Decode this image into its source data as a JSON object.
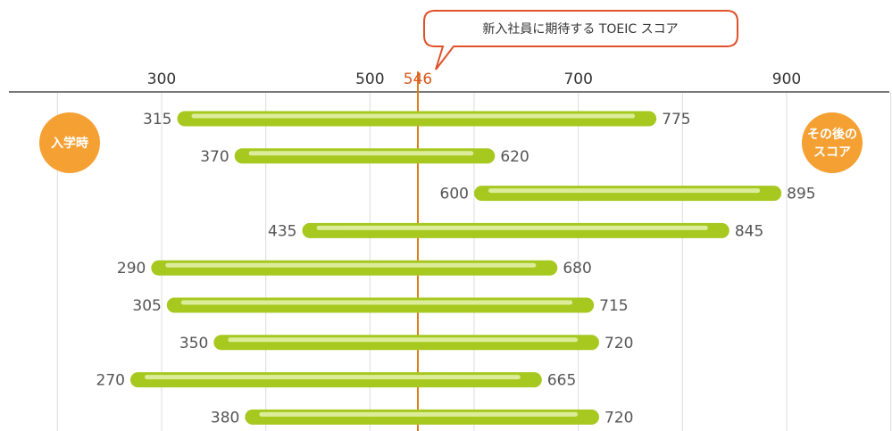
{
  "chart_data": {
    "type": "range-bar",
    "title": "新入社員に期待する TOEIC スコア",
    "xlim": [
      200,
      1000
    ],
    "x_ticks": [
      300,
      500,
      700,
      900
    ],
    "marker": {
      "value": 546,
      "label": "546"
    },
    "start_label": "入学時",
    "end_label_lines": [
      "その後の",
      "スコア"
    ],
    "ranges": [
      {
        "start": 315,
        "end": 775
      },
      {
        "start": 370,
        "end": 620
      },
      {
        "start": 600,
        "end": 895
      },
      {
        "start": 435,
        "end": 845
      },
      {
        "start": 290,
        "end": 680
      },
      {
        "start": 305,
        "end": 715
      },
      {
        "start": 350,
        "end": 720
      },
      {
        "start": 270,
        "end": 665
      },
      {
        "start": 380,
        "end": 720
      }
    ],
    "grid": true
  },
  "colors": {
    "bar": "#a6c81f",
    "bar_highlight": "#dcec9a",
    "marker": "#e07a1f",
    "axis": "#777777",
    "grid": "#dcdcdc",
    "badge": "#f5a033",
    "callout_border": "#e0502a"
  }
}
